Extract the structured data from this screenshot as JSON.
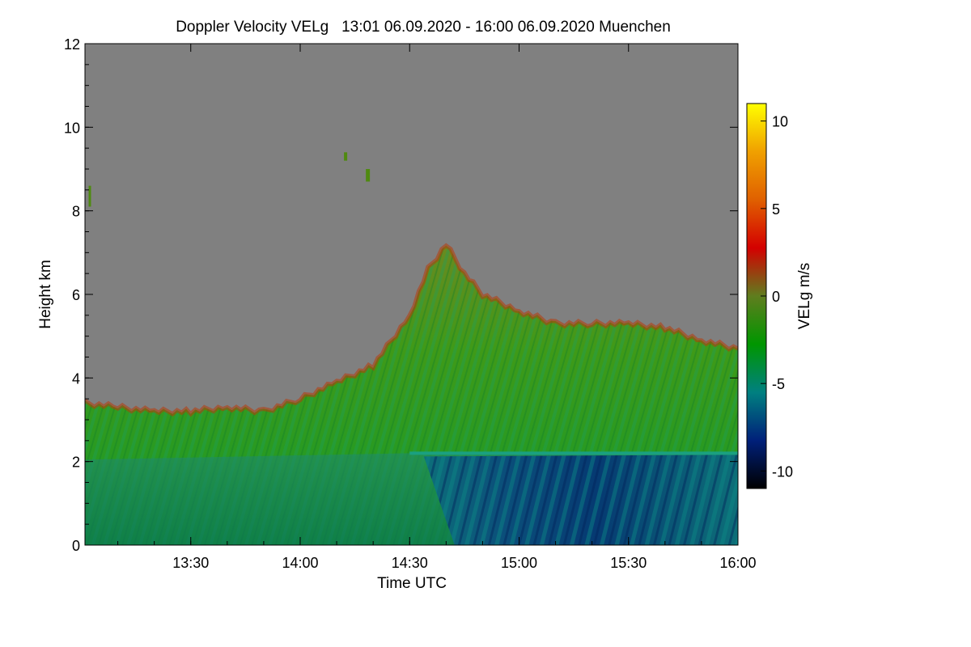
{
  "chart_data": {
    "type": "heatmap",
    "title": "Doppler Velocity VELg   13:01 06.09.2020 - 16:00 06.09.2020 Muenchen",
    "xlabel": "Time UTC",
    "ylabel": "Height km",
    "colorbar_label": "VELg m/s",
    "x_range": [
      "13:01",
      "16:00"
    ],
    "x_ticks": [
      "13:30",
      "14:00",
      "14:30",
      "15:00",
      "15:30",
      "16:00"
    ],
    "y_range": [
      0,
      12
    ],
    "y_ticks": [
      "0",
      "2",
      "4",
      "6",
      "8",
      "10",
      "12"
    ],
    "colorbar_range": [
      -11,
      11
    ],
    "colorbar_ticks": [
      "10",
      "5",
      "0",
      "-5",
      "-10"
    ],
    "background_color": "#808080",
    "colorscale": [
      "#000000",
      "#00207a",
      "#008080",
      "#009600",
      "#5f7d1e",
      "#d40000",
      "#e06000",
      "#f0a000",
      "#ffff00"
    ],
    "echo_top_km": [
      {
        "time": "13:01",
        "top": 3.4
      },
      {
        "time": "13:10",
        "top": 3.3
      },
      {
        "time": "13:20",
        "top": 3.2
      },
      {
        "time": "13:30",
        "top": 3.2
      },
      {
        "time": "13:40",
        "top": 3.3
      },
      {
        "time": "13:50",
        "top": 3.2
      },
      {
        "time": "14:00",
        "top": 3.5
      },
      {
        "time": "14:10",
        "top": 3.9
      },
      {
        "time": "14:20",
        "top": 4.3
      },
      {
        "time": "14:30",
        "top": 5.5
      },
      {
        "time": "14:35",
        "top": 6.6
      },
      {
        "time": "14:40",
        "top": 7.2
      },
      {
        "time": "14:45",
        "top": 6.5
      },
      {
        "time": "14:50",
        "top": 6.0
      },
      {
        "time": "15:00",
        "top": 5.6
      },
      {
        "time": "15:10",
        "top": 5.3
      },
      {
        "time": "15:20",
        "top": 5.3
      },
      {
        "time": "15:30",
        "top": 5.3
      },
      {
        "time": "15:40",
        "top": 5.2
      },
      {
        "time": "15:50",
        "top": 4.9
      },
      {
        "time": "16:00",
        "top": 4.7
      }
    ],
    "melting_layer_km": 2.2,
    "strong_downdraft_period": [
      "14:37",
      "16:00"
    ],
    "strong_downdraft_velocity_ms": -7
  }
}
